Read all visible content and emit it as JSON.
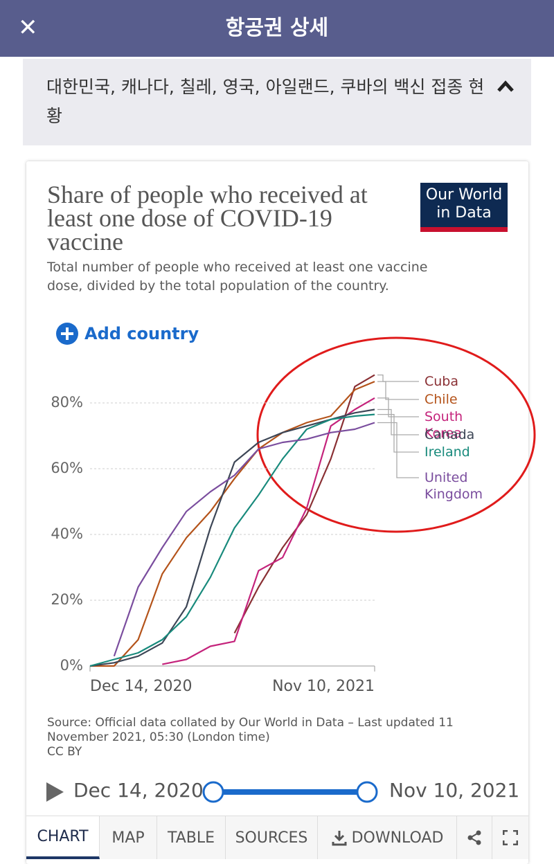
{
  "header": {
    "title": "항공권 상세"
  },
  "summary": {
    "text": "대한민국, 캐나다, 칠레, 영국, 아일랜드, 쿠바의 백신 접종 현황"
  },
  "logo": [
    "Our World",
    "in Data"
  ],
  "add_button": "Add country",
  "chart_data": {
    "type": "line",
    "title": "Share of people who received at least one dose of COVID-19 vaccine",
    "subtitle": "Total number of people who received at least one vaccine dose, divided by the total population of the country.",
    "x": [
      "2020-12-14",
      "2021-01-11",
      "2021-02-08",
      "2021-03-08",
      "2021-04-05",
      "2021-05-03",
      "2021-05-31",
      "2021-06-28",
      "2021-07-26",
      "2021-08-23",
      "2021-09-20",
      "2021-10-18",
      "2021-11-10"
    ],
    "xlim": [
      "2020-12-14",
      "2021-11-10"
    ],
    "xticks": [
      {
        "value": "2020-12-14",
        "label": "Dec 14, 2020"
      },
      {
        "value": "2021-11-10",
        "label": "Nov 10, 2021"
      }
    ],
    "ylim": [
      0,
      90
    ],
    "yticks": [
      {
        "value": 0,
        "label": "0%"
      },
      {
        "value": 20,
        "label": "20%"
      },
      {
        "value": 40,
        "label": "40%"
      },
      {
        "value": 60,
        "label": "60%"
      },
      {
        "value": 80,
        "label": "80%"
      }
    ],
    "grid": true,
    "series": [
      {
        "name": "Cuba",
        "color": "#8a3034",
        "values": [
          null,
          null,
          null,
          null,
          null,
          null,
          10,
          24,
          36,
          46,
          63,
          85,
          88.5
        ]
      },
      {
        "name": "Chile",
        "color": "#b4531a",
        "values": [
          0,
          0,
          8,
          28,
          39,
          47,
          57,
          66,
          71,
          74,
          76,
          84,
          86.5
        ]
      },
      {
        "name": "South Korea",
        "color": "#c4237b",
        "values": [
          null,
          null,
          null,
          0.5,
          2,
          6,
          7.5,
          29,
          33,
          48,
          73,
          78,
          81.5
        ]
      },
      {
        "name": "Canada",
        "color": "#3d4656",
        "values": [
          0,
          1,
          3,
          7,
          18,
          42,
          62,
          68,
          71,
          73,
          75,
          77,
          78
        ]
      },
      {
        "name": "Ireland",
        "color": "#188a7c",
        "values": [
          0,
          2,
          4,
          8,
          15,
          27,
          42,
          52,
          63,
          72,
          75,
          76,
          76.5
        ]
      },
      {
        "name": "United Kingdom",
        "color": "#7a4d9e",
        "values": [
          null,
          3,
          24,
          36,
          47,
          53,
          58,
          66,
          68,
          69,
          71,
          72,
          74
        ]
      }
    ],
    "source": "Source: Official data collated by Our World in Data – Last updated 11 November 2021, 05:30 (London time)",
    "license": "CC BY"
  },
  "controls": {
    "start": "Dec 14, 2020",
    "end": "Nov 10, 2021"
  },
  "tabs": [
    "CHART",
    "MAP",
    "TABLE",
    "SOURCES",
    "DOWNLOAD"
  ]
}
